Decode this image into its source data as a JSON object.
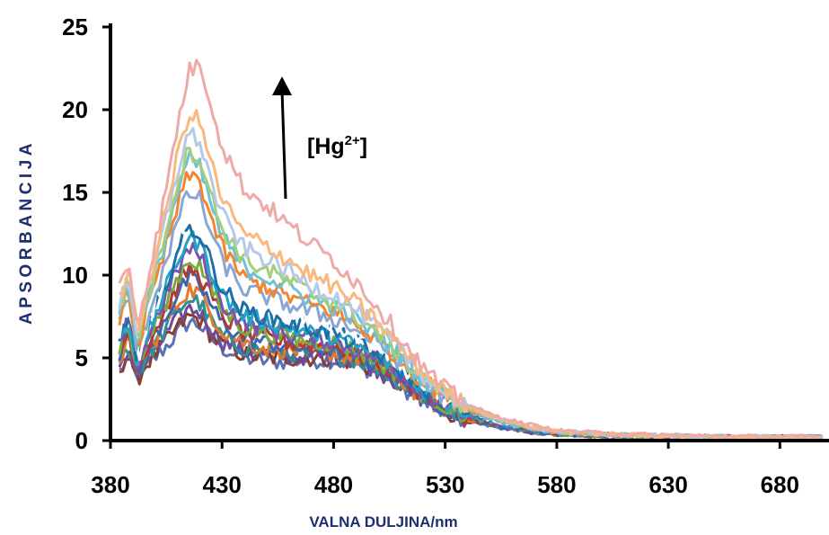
{
  "chart_data": {
    "type": "line",
    "title": "",
    "xlabel": "VALNA DULJINA/nm",
    "ylabel": "APSORBANCIJA",
    "xlim": [
      380,
      702
    ],
    "ylim": [
      0,
      25
    ],
    "x_ticks": [
      "380",
      "430",
      "480",
      "530",
      "580",
      "630",
      "680"
    ],
    "y_ticks": [
      "0",
      "5",
      "10",
      "15",
      "20",
      "25"
    ],
    "grid": false,
    "legend": "none",
    "annotation": {
      "prefix": "[Hg",
      "sup": "2+",
      "suffix": "]",
      "arrow": "up"
    },
    "x": [
      384,
      388,
      392,
      396,
      400,
      405,
      410,
      415,
      420,
      425,
      430,
      440,
      450,
      460,
      470,
      480,
      490,
      500,
      510,
      520,
      530,
      540,
      550,
      560,
      570,
      580,
      600,
      620,
      640,
      660,
      680,
      700
    ],
    "series": [
      {
        "color": "#5b6fb5",
        "values": [
          4.2,
          5.0,
          3.6,
          4.4,
          5.0,
          5.7,
          6.5,
          7.2,
          7.0,
          6.2,
          5.6,
          5.0,
          4.8,
          4.8,
          4.9,
          4.9,
          4.6,
          4.1,
          3.3,
          2.4,
          1.7,
          1.2,
          0.9,
          0.7,
          0.5,
          0.4,
          0.3,
          0.25,
          0.2,
          0.2,
          0.2,
          0.2
        ]
      },
      {
        "color": "#8a3f2e",
        "values": [
          4.4,
          5.2,
          3.7,
          4.6,
          5.2,
          6.0,
          6.8,
          7.5,
          7.3,
          6.4,
          5.8,
          5.2,
          5.0,
          5.0,
          5.0,
          5.0,
          4.7,
          4.2,
          3.4,
          2.5,
          1.8,
          1.2,
          0.9,
          0.7,
          0.5,
          0.4,
          0.3,
          0.25,
          0.2,
          0.2,
          0.2,
          0.2
        ]
      },
      {
        "color": "#6f4a9a",
        "values": [
          4.6,
          5.5,
          3.8,
          4.8,
          5.5,
          6.4,
          7.3,
          8.0,
          7.8,
          6.8,
          6.0,
          5.4,
          5.2,
          5.1,
          5.1,
          5.1,
          4.8,
          4.3,
          3.4,
          2.5,
          1.8,
          1.3,
          0.9,
          0.7,
          0.5,
          0.4,
          0.3,
          0.25,
          0.2,
          0.2,
          0.2,
          0.2
        ]
      },
      {
        "color": "#2f8f96",
        "values": [
          4.8,
          5.8,
          3.9,
          5.0,
          5.8,
          6.8,
          7.8,
          8.6,
          8.3,
          7.2,
          6.3,
          5.6,
          5.4,
          5.3,
          5.2,
          5.2,
          4.9,
          4.4,
          3.5,
          2.6,
          1.9,
          1.3,
          1.0,
          0.7,
          0.5,
          0.4,
          0.3,
          0.25,
          0.2,
          0.2,
          0.2,
          0.2
        ]
      },
      {
        "color": "#e07b2a",
        "values": [
          5.0,
          6.0,
          4.0,
          5.2,
          6.1,
          7.2,
          8.3,
          9.2,
          8.9,
          7.7,
          6.7,
          5.9,
          5.6,
          5.5,
          5.4,
          5.3,
          5.0,
          4.5,
          3.6,
          2.6,
          1.9,
          1.3,
          1.0,
          0.7,
          0.5,
          0.4,
          0.3,
          0.25,
          0.2,
          0.2,
          0.2,
          0.2
        ]
      },
      {
        "color": "#3a66b8",
        "values": [
          5.2,
          6.3,
          4.1,
          5.4,
          6.4,
          7.6,
          8.8,
          9.8,
          9.4,
          8.2,
          7.1,
          6.2,
          5.9,
          5.7,
          5.6,
          5.5,
          5.1,
          4.6,
          3.7,
          2.7,
          2.0,
          1.4,
          1.0,
          0.7,
          0.5,
          0.4,
          0.3,
          0.25,
          0.2,
          0.2,
          0.2,
          0.2
        ]
      },
      {
        "color": "#b03a3a",
        "values": [
          5.4,
          6.6,
          4.2,
          5.6,
          6.7,
          8.0,
          9.3,
          10.4,
          10.0,
          8.7,
          7.5,
          6.5,
          6.2,
          5.9,
          5.8,
          5.7,
          5.3,
          4.7,
          3.8,
          2.8,
          2.0,
          1.4,
          1.0,
          0.8,
          0.6,
          0.4,
          0.3,
          0.25,
          0.2,
          0.2,
          0.2,
          0.2
        ]
      },
      {
        "color": "#78ad3c",
        "values": [
          5.6,
          6.9,
          4.3,
          5.8,
          7.0,
          8.4,
          9.8,
          11.0,
          10.6,
          9.2,
          7.9,
          6.8,
          6.5,
          6.2,
          6.0,
          5.9,
          5.4,
          4.8,
          3.9,
          2.9,
          2.1,
          1.5,
          1.1,
          0.8,
          0.6,
          0.4,
          0.3,
          0.25,
          0.2,
          0.2,
          0.2,
          0.2
        ]
      },
      {
        "color": "#7a55b0",
        "values": [
          5.8,
          7.2,
          4.4,
          6.0,
          7.3,
          8.8,
          10.3,
          11.6,
          11.2,
          9.7,
          8.3,
          7.1,
          6.8,
          6.4,
          6.2,
          6.0,
          5.5,
          4.9,
          4.0,
          3.0,
          2.2,
          1.5,
          1.1,
          0.8,
          0.6,
          0.4,
          0.3,
          0.25,
          0.2,
          0.2,
          0.2,
          0.2
        ]
      },
      {
        "color": "#1fa3c7",
        "values": [
          6.0,
          7.5,
          4.6,
          6.2,
          7.6,
          9.2,
          10.9,
          12.3,
          11.9,
          10.3,
          8.8,
          7.5,
          7.2,
          6.8,
          6.5,
          6.3,
          5.7,
          5.1,
          4.1,
          3.1,
          2.3,
          1.6,
          1.2,
          0.9,
          0.6,
          0.5,
          0.35,
          0.3,
          0.25,
          0.2,
          0.2,
          0.2
        ]
      },
      {
        "color": "#1c6fa8",
        "values": [
          6.2,
          7.8,
          4.8,
          6.4,
          7.9,
          9.6,
          11.4,
          12.9,
          12.5,
          10.8,
          9.2,
          7.8,
          7.5,
          7.1,
          6.8,
          6.5,
          5.9,
          5.2,
          4.2,
          3.2,
          2.4,
          1.7,
          1.2,
          0.9,
          0.6,
          0.5,
          0.35,
          0.3,
          0.25,
          0.2,
          0.2,
          0.2
        ]
      },
      {
        "color": "#ffffff",
        "values": [
          6.6,
          8.2,
          5.0,
          6.8,
          8.4,
          10.3,
          12.3,
          13.9,
          13.5,
          11.7,
          10.0,
          8.5,
          8.1,
          7.6,
          7.3,
          7.0,
          6.4,
          5.6,
          4.5,
          3.4,
          2.5,
          1.8,
          1.3,
          0.9,
          0.7,
          0.5,
          0.35,
          0.3,
          0.25,
          0.2,
          0.2,
          0.2
        ]
      },
      {
        "color": "#8aa6d6",
        "values": [
          7.0,
          8.7,
          5.3,
          7.2,
          8.9,
          11.0,
          13.2,
          15.0,
          14.6,
          12.6,
          10.8,
          9.1,
          8.7,
          8.2,
          7.8,
          7.4,
          6.7,
          5.9,
          4.7,
          3.5,
          2.6,
          1.8,
          1.3,
          1.0,
          0.7,
          0.5,
          0.35,
          0.3,
          0.25,
          0.2,
          0.2,
          0.2
        ]
      },
      {
        "color": "#f2862e",
        "values": [
          7.4,
          9.2,
          5.6,
          7.6,
          9.4,
          11.7,
          14.1,
          16.1,
          15.7,
          13.5,
          11.6,
          9.8,
          9.3,
          8.7,
          8.2,
          7.8,
          7.0,
          6.1,
          4.9,
          3.6,
          2.7,
          1.9,
          1.4,
          1.0,
          0.7,
          0.5,
          0.35,
          0.3,
          0.25,
          0.2,
          0.2,
          0.2
        ]
      },
      {
        "color": "#6ec1d8",
        "values": [
          7.8,
          9.6,
          5.9,
          8.0,
          9.9,
          12.4,
          15.0,
          17.0,
          16.5,
          14.3,
          12.3,
          10.4,
          9.9,
          9.2,
          8.6,
          8.1,
          7.3,
          6.3,
          5.1,
          3.7,
          2.8,
          2.0,
          1.4,
          1.0,
          0.7,
          0.5,
          0.4,
          0.3,
          0.25,
          0.2,
          0.2,
          0.2
        ]
      },
      {
        "color": "#a4cf7a",
        "values": [
          8.0,
          9.8,
          6.1,
          8.2,
          10.2,
          12.9,
          15.6,
          17.6,
          17.1,
          14.8,
          12.8,
          10.9,
          10.3,
          9.6,
          8.9,
          8.4,
          7.5,
          6.5,
          5.2,
          3.8,
          2.8,
          2.0,
          1.5,
          1.1,
          0.8,
          0.5,
          0.4,
          0.3,
          0.25,
          0.2,
          0.2,
          0.2
        ]
      },
      {
        "color": "#b6c8e8",
        "values": [
          8.3,
          10.1,
          6.3,
          8.5,
          10.6,
          13.4,
          16.3,
          18.6,
          18.1,
          15.7,
          13.6,
          11.6,
          11.0,
          10.2,
          9.4,
          8.8,
          7.9,
          6.8,
          5.4,
          4.0,
          2.9,
          2.1,
          1.5,
          1.1,
          0.8,
          0.6,
          0.4,
          0.3,
          0.25,
          0.2,
          0.2,
          0.2
        ]
      },
      {
        "color": "#fab77e",
        "values": [
          8.6,
          10.4,
          6.5,
          8.8,
          11.0,
          14.0,
          17.2,
          19.8,
          19.3,
          16.8,
          14.6,
          12.4,
          11.8,
          10.9,
          10.0,
          9.3,
          8.3,
          7.1,
          5.6,
          4.1,
          3.0,
          2.1,
          1.5,
          1.1,
          0.8,
          0.6,
          0.4,
          0.3,
          0.25,
          0.2,
          0.2,
          0.2
        ]
      },
      {
        "color": "#eeaaa6",
        "values": [
          9.2,
          10.8,
          7.0,
          9.4,
          11.8,
          15.2,
          19.0,
          22.3,
          22.8,
          20.5,
          17.8,
          15.2,
          14.2,
          13.0,
          11.9,
          10.9,
          9.6,
          8.1,
          6.2,
          4.4,
          3.1,
          2.2,
          1.6,
          1.2,
          0.9,
          0.6,
          0.45,
          0.35,
          0.3,
          0.25,
          0.25,
          0.2
        ]
      }
    ]
  }
}
